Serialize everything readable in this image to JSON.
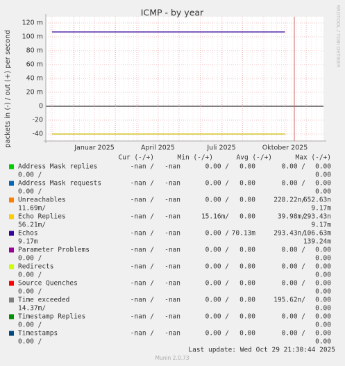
{
  "chart_data": {
    "type": "line",
    "title": "ICMP - by year",
    "y_label": "packets in (-) / out (+) per second",
    "side_label": "RRDTOOL / TOBI OETIKER",
    "categories": [
      null,
      null,
      "Januar 2025",
      null,
      null,
      "April 2025",
      null,
      null,
      "Juli 2025",
      null,
      null,
      "Oktober 2025",
      null
    ],
    "series": [
      {
        "color": "#330099",
        "values": [
          107,
          107,
          107,
          107,
          107,
          107,
          107,
          107,
          107,
          107,
          107,
          107,
          null
        ]
      },
      {
        "color": "#ccb800",
        "values": [
          -40,
          -40,
          -40,
          -40,
          -40,
          -40,
          -40,
          -40,
          -40,
          -40,
          -40,
          -40,
          null
        ]
      }
    ],
    "ylim": [
      -50,
      129
    ],
    "yticks": [
      {
        "value": -40,
        "label": "-40"
      },
      {
        "value": -20,
        "label": "-20"
      },
      0,
      {
        "value": 20,
        "label": "20 m"
      },
      {
        "value": 40,
        "label": "40 m"
      },
      {
        "value": 60,
        "label": "60 m"
      },
      {
        "value": 80,
        "label": "80 m"
      },
      {
        "value": 100,
        "label": "100 m"
      },
      {
        "value": 120,
        "label": "120 m"
      }
    ],
    "grid": true,
    "legend_table": {
      "header": [
        "Cur (-/+)",
        "Min (-/+)",
        "Avg (-/+)",
        "Max (-/+)"
      ],
      "rows": [
        {
          "name": "Address Mask replies",
          "color": "#00cc00",
          "cells": [
            "-nan /",
            "-nan",
            "0.00 /",
            "0.00",
            "0.00 /",
            "0.00",
            "0.00 /",
            "0.00"
          ]
        },
        {
          "name": "Address Mask requests",
          "color": "#0066b3",
          "cells": [
            "-nan /",
            "-nan",
            "0.00 /",
            "0.00",
            "0.00 /",
            "0.00",
            "0.00 /",
            "0.00"
          ]
        },
        {
          "name": "Unreachables",
          "color": "#ff8000",
          "cells": [
            "-nan /",
            "-nan",
            "0.00 /",
            "0.00",
            "228.22n/",
            "652.63n",
            "11.69m/",
            "9.17m"
          ]
        },
        {
          "name": "Echo Replies",
          "color": "#ffcc00",
          "cells": [
            "-nan /",
            "-nan",
            "15.16m/",
            "0.00",
            "39.98m/",
            "293.43n",
            "56.21m/",
            "9.17m"
          ]
        },
        {
          "name": "Echos",
          "color": "#330099",
          "cells": [
            "-nan /",
            "-nan",
            "0.00 /",
            "70.13m",
            "293.43n/",
            "106.63m",
            "9.17m",
            "139.24m"
          ]
        },
        {
          "name": "Parameter Problems",
          "color": "#990099",
          "cells": [
            "-nan /",
            "-nan",
            "0.00 /",
            "0.00",
            "0.00 /",
            "0.00",
            "0.00 /",
            "0.00"
          ]
        },
        {
          "name": "Redirects",
          "color": "#ccff00",
          "cells": [
            "-nan /",
            "-nan",
            "0.00 /",
            "0.00",
            "0.00 /",
            "0.00",
            "0.00 /",
            "0.00"
          ]
        },
        {
          "name": "Source Quenches",
          "color": "#ff0000",
          "cells": [
            "-nan /",
            "-nan",
            "0.00 /",
            "0.00",
            "0.00 /",
            "0.00",
            "0.00 /",
            "0.00"
          ]
        },
        {
          "name": "Time exceeded",
          "color": "#808080",
          "cells": [
            "-nan /",
            "-nan",
            "0.00 /",
            "0.00",
            "195.62n/",
            "0.00",
            "14.37m/",
            "0.00"
          ]
        },
        {
          "name": "Timestamp Replies",
          "color": "#008f00",
          "cells": [
            "-nan /",
            "-nan",
            "0.00 /",
            "0.00",
            "0.00 /",
            "0.00",
            "0.00 /",
            "0.00"
          ]
        },
        {
          "name": "Timestamps",
          "color": "#00487d",
          "cells": [
            "-nan /",
            "-nan",
            "0.00 /",
            "0.00",
            "0.00 /",
            "0.00",
            "0.00 /",
            "0.00"
          ]
        }
      ]
    },
    "last_update": "Last update: Wed Oct 29 21:30:44 2025",
    "footer": "Munin 2.0.73"
  }
}
